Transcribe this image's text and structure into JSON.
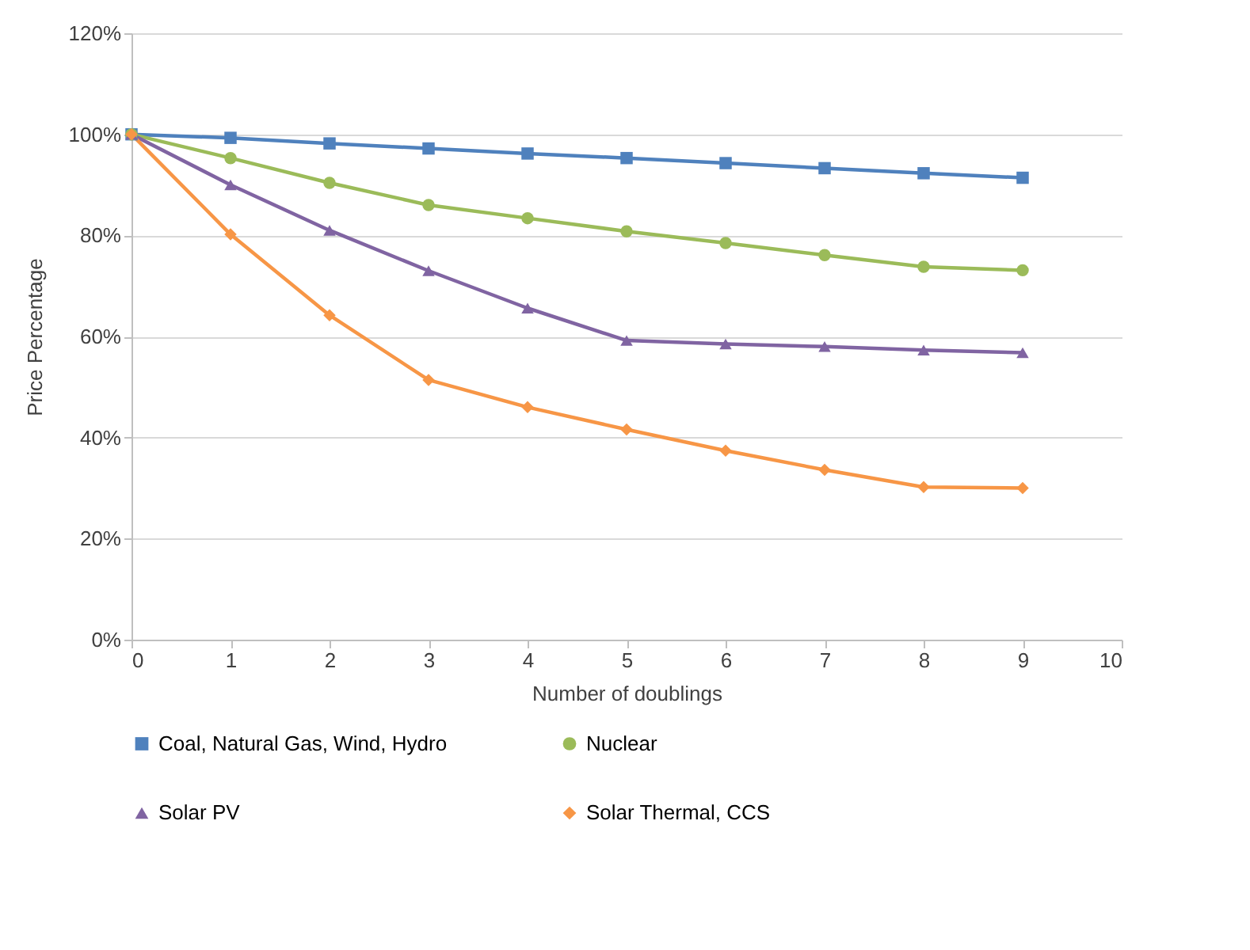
{
  "chart_data": {
    "type": "line",
    "xlabel": "Number of doublings",
    "ylabel": "Price Percentage",
    "x": [
      0,
      1,
      2,
      3,
      4,
      5,
      6,
      7,
      8,
      9
    ],
    "series": [
      {
        "name": "Coal, Natural Gas, Wind, Hydro",
        "color": "#4f81bd",
        "marker": "square",
        "values": [
          100,
          99.3,
          98.2,
          97.2,
          96.2,
          95.3,
          94.3,
          93.3,
          92.3,
          91.4
        ]
      },
      {
        "name": "Nuclear",
        "color": "#9bbb59",
        "marker": "circle",
        "values": [
          100,
          95.3,
          90.4,
          86,
          83.4,
          80.8,
          78.5,
          76.1,
          73.8,
          73.1
        ]
      },
      {
        "name": "Solar PV",
        "color": "#8064a2",
        "marker": "triangle",
        "values": [
          100,
          90,
          81,
          73,
          65.6,
          59.2,
          58.5,
          58,
          57.3,
          56.8
        ]
      },
      {
        "name": "Solar Thermal, CCS",
        "color": "#f79646",
        "marker": "diamond",
        "values": [
          100,
          80.2,
          64.2,
          51.4,
          46,
          41.6,
          37.4,
          33.6,
          30.2,
          30
        ]
      }
    ],
    "xlim": [
      0,
      10
    ],
    "xticks": [
      0,
      1,
      2,
      3,
      4,
      5,
      6,
      7,
      8,
      9,
      10
    ],
    "ylim": [
      0,
      120
    ],
    "yticks": [
      {
        "value": 0,
        "label": "0%"
      },
      {
        "value": 20,
        "label": "20%"
      },
      {
        "value": 40,
        "label": "40%"
      },
      {
        "value": 60,
        "label": "60%"
      },
      {
        "value": 80,
        "label": "80%"
      },
      {
        "value": 100,
        "label": "100%"
      },
      {
        "value": 120,
        "label": "120%"
      }
    ],
    "grid": "y",
    "legend": "bottom",
    "line_style": "solid"
  }
}
